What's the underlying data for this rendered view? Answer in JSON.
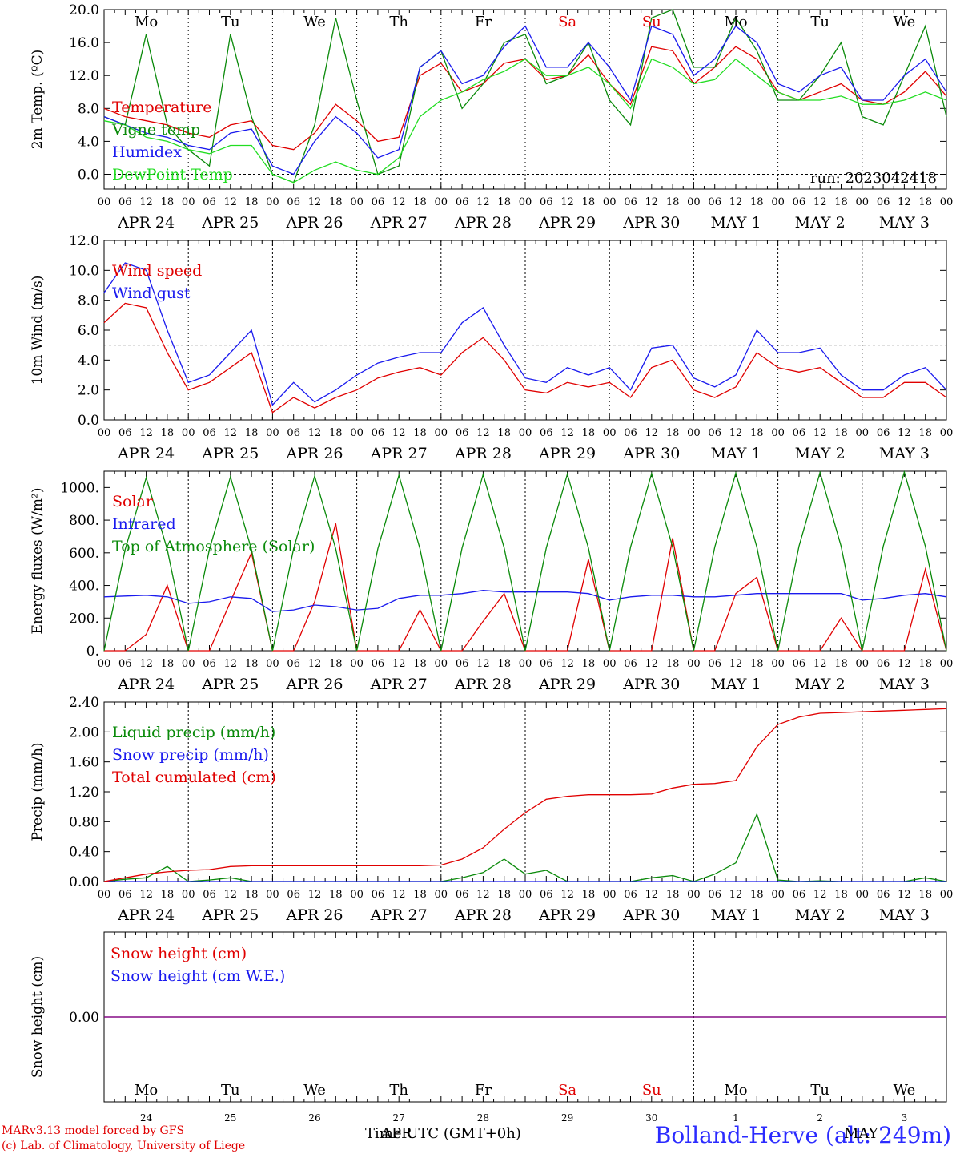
{
  "footer": {
    "credit_line1": "MARv3.13 model forced by GFS",
    "credit_line2": "(c) Lab. of Climatology, University of Liege",
    "time_axis_label": "Time UTC (GMT+0h)",
    "month_overlay": "APR",
    "station": "Bolland-Herve (alt: 249m)",
    "month_right": "MAY"
  },
  "colors": {
    "red": "#e00000",
    "green": "#0a8a0a",
    "blue": "#1a1aee",
    "lightgreen": "#22dd22",
    "purple": "#800080",
    "weekend": "#e00000"
  },
  "days": [
    "APR 24",
    "APR 25",
    "APR 26",
    "APR 27",
    "APR 28",
    "APR 29",
    "APR 30",
    "MAY  1",
    "MAY  2",
    "MAY  3"
  ],
  "weekdays": [
    {
      "label": "Mo",
      "weekend": false
    },
    {
      "label": "Tu",
      "weekend": false
    },
    {
      "label": "We",
      "weekend": false
    },
    {
      "label": "Th",
      "weekend": false
    },
    {
      "label": "Fr",
      "weekend": false
    },
    {
      "label": "Sa",
      "weekend": true
    },
    {
      "label": "Su",
      "weekend": true
    },
    {
      "label": "Mo",
      "weekend": false
    },
    {
      "label": "Tu",
      "weekend": false
    },
    {
      "label": "We",
      "weekend": false
    }
  ],
  "hour_labels": [
    "00",
    "06",
    "12",
    "18"
  ],
  "day_numbers": [
    "24",
    "25",
    "26",
    "27",
    "28",
    "29",
    "30",
    "1",
    "2",
    "3"
  ],
  "chart_data": [
    {
      "type": "line",
      "ylabel": "2m Temp. (ºC)",
      "ylim": [
        -1.8,
        20
      ],
      "yticks": [
        0,
        4,
        8,
        12,
        16,
        20
      ],
      "ytick_labels": [
        "0.0",
        "4.0",
        "8.0",
        "12.0",
        "16.0",
        "20.0"
      ],
      "hline": 0,
      "run_label": "run: 2023042418",
      "x": [
        0,
        0.25,
        0.5,
        0.75,
        1,
        1.25,
        1.5,
        1.75,
        2,
        2.25,
        2.5,
        2.75,
        3,
        3.25,
        3.5,
        3.75,
        4,
        4.25,
        4.5,
        4.75,
        5,
        5.25,
        5.5,
        5.75,
        6,
        6.25,
        6.5,
        6.75,
        7,
        7.25,
        7.5,
        7.75,
        8,
        8.25,
        8.5,
        8.75,
        9,
        9.25,
        9.5,
        9.75,
        10
      ],
      "series": [
        {
          "name": "Temperature",
          "color": "red",
          "values": [
            8,
            7,
            6.5,
            6,
            5,
            4.5,
            6,
            6.5,
            3.5,
            3,
            5,
            8.5,
            6.5,
            4,
            4.5,
            12,
            13.5,
            10,
            11,
            13.5,
            14,
            11.5,
            12,
            14.5,
            11,
            8.5,
            15.5,
            15,
            11,
            13,
            15.5,
            14,
            10,
            9,
            10,
            11,
            9,
            8.5,
            10,
            12.5,
            9.5
          ]
        },
        {
          "name": "Vigne temp",
          "color": "green",
          "values": [
            7,
            6,
            17,
            6,
            3,
            1,
            17,
            7,
            0,
            -1,
            6,
            19,
            9,
            0,
            1,
            13,
            15,
            8,
            11,
            16,
            17,
            11,
            12,
            16,
            9,
            6,
            19,
            20,
            13,
            13,
            19,
            15,
            9,
            9,
            12,
            16,
            7,
            6,
            12,
            18,
            7
          ]
        },
        {
          "name": "Humidex",
          "color": "blue",
          "values": [
            7,
            6,
            5,
            4.5,
            3.5,
            3,
            5,
            5.5,
            1,
            0,
            4,
            7,
            5,
            2,
            3,
            13,
            15,
            11,
            12,
            15.5,
            18,
            13,
            13,
            16,
            13,
            9,
            18,
            17,
            12,
            14,
            18,
            16,
            11,
            10,
            12,
            13,
            9,
            9,
            12,
            14,
            10
          ]
        },
        {
          "name": "DewPoint Temp",
          "color": "lightgreen",
          "values": [
            6.5,
            6,
            4.5,
            4,
            3,
            2.5,
            3.5,
            3.5,
            0,
            -1,
            0.5,
            1.5,
            0.5,
            0,
            2,
            7,
            9,
            10,
            11.5,
            12.5,
            14,
            12,
            12,
            13,
            11,
            8,
            14,
            13,
            11,
            11.5,
            14,
            12,
            10,
            9,
            9,
            9.5,
            8.5,
            8.5,
            9,
            10,
            9
          ]
        }
      ]
    },
    {
      "type": "line",
      "ylabel": "10m Wind (m/s)",
      "ylim": [
        0,
        12
      ],
      "yticks": [
        0,
        2,
        4,
        6,
        8,
        10,
        12
      ],
      "ytick_labels": [
        "0.0",
        "2.0",
        "4.0",
        "6.0",
        "8.0",
        "10.0",
        "12.0"
      ],
      "hline": 5,
      "x": [
        0,
        0.25,
        0.5,
        0.75,
        1,
        1.25,
        1.5,
        1.75,
        2,
        2.25,
        2.5,
        2.75,
        3,
        3.25,
        3.5,
        3.75,
        4,
        4.25,
        4.5,
        4.75,
        5,
        5.25,
        5.5,
        5.75,
        6,
        6.25,
        6.5,
        6.75,
        7,
        7.25,
        7.5,
        7.75,
        8,
        8.25,
        8.5,
        8.75,
        9,
        9.25,
        9.5,
        9.75,
        10
      ],
      "series": [
        {
          "name": "Wind speed",
          "color": "red",
          "values": [
            6.5,
            7.8,
            7.5,
            4.5,
            2,
            2.5,
            3.5,
            4.5,
            0.5,
            1.5,
            0.8,
            1.5,
            2,
            2.8,
            3.2,
            3.5,
            3,
            4.5,
            5.5,
            4,
            2,
            1.8,
            2.5,
            2.2,
            2.5,
            1.5,
            3.5,
            4,
            2,
            1.5,
            2.2,
            4.5,
            3.5,
            3.2,
            3.5,
            2.5,
            1.5,
            1.5,
            2.5,
            2.5,
            1.5
          ]
        },
        {
          "name": "Wind gust",
          "color": "blue",
          "values": [
            8.5,
            10.5,
            10,
            6,
            2.5,
            3,
            4.5,
            6,
            1,
            2.5,
            1.2,
            2,
            3,
            3.8,
            4.2,
            4.5,
            4.5,
            6.5,
            7.5,
            5,
            2.8,
            2.5,
            3.5,
            3,
            3.5,
            2,
            4.8,
            5,
            2.8,
            2.2,
            3,
            6,
            4.5,
            4.5,
            4.8,
            3,
            2,
            2,
            3,
            3.5,
            2
          ]
        }
      ]
    },
    {
      "type": "line",
      "ylabel": "Energy fluxes (W/m²)",
      "ylim": [
        0,
        1100
      ],
      "yticks": [
        0,
        200,
        400,
        600,
        800,
        1000
      ],
      "ytick_labels": [
        "0.",
        "200.",
        "400.",
        "600.",
        "800.",
        "1000."
      ],
      "x": [
        0,
        0.25,
        0.5,
        0.75,
        1,
        1.25,
        1.5,
        1.75,
        2,
        2.25,
        2.5,
        2.75,
        3,
        3.25,
        3.5,
        3.75,
        4,
        4.25,
        4.5,
        4.75,
        5,
        5.25,
        5.5,
        5.75,
        6,
        6.25,
        6.5,
        6.75,
        7,
        7.25,
        7.5,
        7.75,
        8,
        8.25,
        8.5,
        8.75,
        9,
        9.25,
        9.5,
        9.75,
        10
      ],
      "series": [
        {
          "name": "Solar",
          "color": "red",
          "values": [
            0,
            0,
            100,
            400,
            0,
            0,
            300,
            600,
            0,
            0,
            300,
            780,
            0,
            0,
            0,
            250,
            0,
            0,
            180,
            350,
            0,
            0,
            0,
            560,
            0,
            0,
            0,
            690,
            0,
            0,
            350,
            450,
            0,
            0,
            0,
            200,
            0,
            0,
            0,
            500,
            0
          ]
        },
        {
          "name": "Infrared",
          "color": "blue",
          "values": [
            330,
            335,
            340,
            330,
            290,
            300,
            330,
            320,
            240,
            250,
            280,
            270,
            250,
            260,
            320,
            340,
            340,
            350,
            370,
            360,
            360,
            360,
            360,
            350,
            310,
            330,
            340,
            340,
            330,
            330,
            340,
            350,
            350,
            350,
            350,
            350,
            310,
            320,
            340,
            350,
            330
          ]
        },
        {
          "name": "Top of Atmosphere (Solar)",
          "color": "green",
          "values": [
            0,
            620,
            1060,
            620,
            0,
            620,
            1065,
            620,
            0,
            625,
            1070,
            625,
            0,
            625,
            1075,
            625,
            0,
            630,
            1080,
            630,
            0,
            630,
            1082,
            630,
            0,
            635,
            1085,
            635,
            0,
            635,
            1088,
            635,
            0,
            640,
            1092,
            640,
            0,
            640,
            1095,
            640,
            0
          ]
        }
      ]
    },
    {
      "type": "line",
      "ylabel": "Precip (mm/h)",
      "ylim": [
        0,
        2.4
      ],
      "yticks": [
        0,
        0.4,
        0.8,
        1.2,
        1.6,
        2.0,
        2.4
      ],
      "ytick_labels": [
        "0.00",
        "0.40",
        "0.80",
        "1.20",
        "1.60",
        "2.00",
        "2.40"
      ],
      "x": [
        0,
        0.25,
        0.5,
        0.75,
        1,
        1.25,
        1.5,
        1.75,
        2,
        2.25,
        2.5,
        2.75,
        3,
        3.25,
        3.5,
        3.75,
        4,
        4.25,
        4.5,
        4.75,
        5,
        5.25,
        5.5,
        5.75,
        6,
        6.25,
        6.5,
        6.75,
        7,
        7.25,
        7.5,
        7.75,
        8,
        8.25,
        8.5,
        8.75,
        9,
        9.25,
        9.5,
        9.75,
        10
      ],
      "series": [
        {
          "name": "Liquid precip (mm/h)",
          "color": "green",
          "values": [
            0,
            0.03,
            0.05,
            0.2,
            0,
            0.02,
            0.05,
            0,
            0,
            0,
            0,
            0,
            0,
            0,
            0,
            0,
            0,
            0.05,
            0.12,
            0.3,
            0.1,
            0.15,
            0,
            0,
            0,
            0,
            0.05,
            0.08,
            0,
            0.1,
            0.25,
            0.9,
            0.02,
            0,
            0.01,
            0,
            0,
            0,
            0,
            0.05,
            0
          ]
        },
        {
          "name": "Snow precip (mm/h)",
          "color": "blue",
          "values": [
            0,
            0,
            0,
            0,
            0,
            0,
            0,
            0,
            0,
            0,
            0,
            0,
            0,
            0,
            0,
            0,
            0,
            0,
            0,
            0,
            0,
            0,
            0,
            0,
            0,
            0,
            0,
            0,
            0,
            0,
            0,
            0,
            0,
            0,
            0,
            0,
            0,
            0,
            0,
            0,
            0
          ]
        },
        {
          "name": "Total cumulated (cm)",
          "color": "red",
          "values": [
            0,
            0.05,
            0.1,
            0.13,
            0.15,
            0.16,
            0.2,
            0.21,
            0.21,
            0.21,
            0.21,
            0.21,
            0.21,
            0.21,
            0.21,
            0.21,
            0.22,
            0.3,
            0.45,
            0.7,
            0.92,
            1.1,
            1.14,
            1.16,
            1.16,
            1.16,
            1.17,
            1.25,
            1.3,
            1.31,
            1.35,
            1.8,
            2.1,
            2.2,
            2.25,
            2.26,
            2.27,
            2.28,
            2.29,
            2.3,
            2.31
          ]
        }
      ]
    },
    {
      "type": "line",
      "ylabel": "Snow height (cm)",
      "ylim": [
        -1,
        1
      ],
      "yticks": [
        0
      ],
      "ytick_labels": [
        "0.00"
      ],
      "x": [
        0,
        10
      ],
      "series": [
        {
          "name": "Snow height (cm)",
          "color": "red",
          "values": [
            0,
            0
          ]
        },
        {
          "name": "Snow height (cm W.E.)",
          "color": "blue",
          "values": [
            0,
            0
          ]
        }
      ]
    }
  ]
}
